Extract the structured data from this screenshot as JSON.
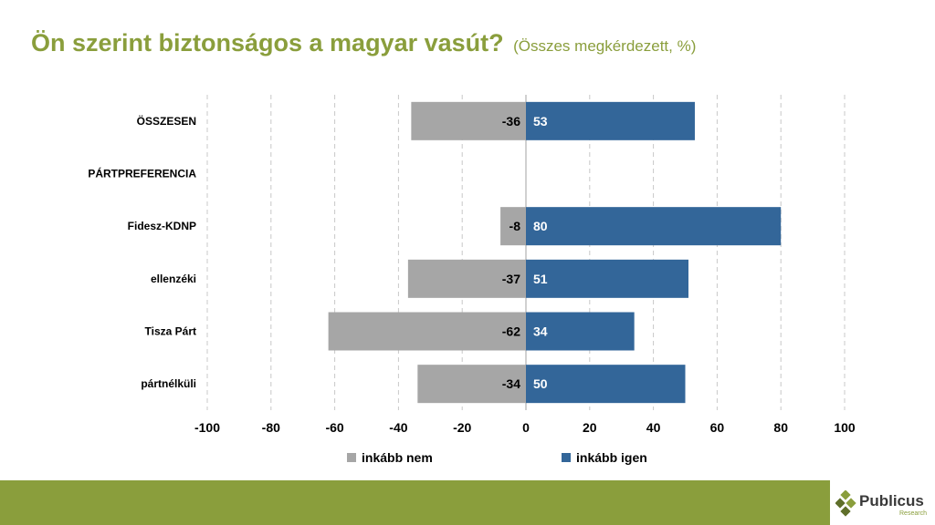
{
  "title": {
    "main": "Ön szerint biztonságos a magyar vasút?",
    "sub": "(Összes megkérdezett, %)"
  },
  "brand": {
    "name": "Publicus",
    "tagline": "Research"
  },
  "colors": {
    "accent": "#8a9e3c",
    "negative": "#a6a6a6",
    "positive": "#336699"
  },
  "chart_data": {
    "type": "bar",
    "orientation": "horizontal-diverging",
    "categories": [
      "ÖSSZESEN",
      "PÁRTPREFERENCIA",
      "Fidesz-KDNP",
      "ellenzéki",
      "Tisza Párt",
      "pártnélküli"
    ],
    "series": [
      {
        "name": "inkább nem",
        "values": [
          -36,
          null,
          -8,
          -37,
          -62,
          -34
        ],
        "color": "#a6a6a6"
      },
      {
        "name": "inkább igen",
        "values": [
          53,
          null,
          80,
          51,
          34,
          50
        ],
        "color": "#336699"
      }
    ],
    "xlim": [
      -100,
      100
    ],
    "xticks": [
      -100,
      -80,
      -60,
      -40,
      -20,
      0,
      20,
      40,
      60,
      80,
      100
    ],
    "grid": true,
    "legend": "bottom"
  }
}
